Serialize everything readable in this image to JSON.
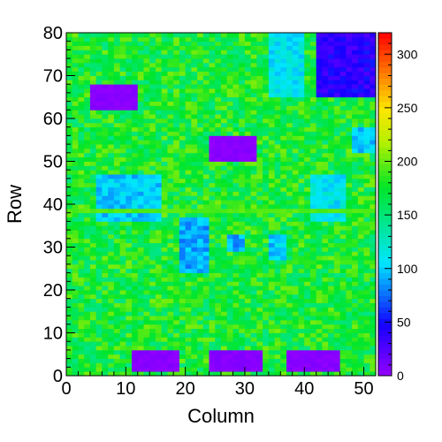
{
  "chart_data": {
    "type": "heatmap",
    "title": "",
    "xlabel": "Column",
    "ylabel": "Row",
    "xlim": [
      0,
      52
    ],
    "ylim": [
      0,
      80
    ],
    "x_ticks": [
      0,
      10,
      20,
      30,
      40,
      50
    ],
    "y_ticks": [
      0,
      10,
      20,
      30,
      40,
      50,
      60,
      70,
      80
    ],
    "colorbar": {
      "range": [
        0,
        320
      ],
      "ticks": [
        0,
        50,
        100,
        150,
        200,
        250,
        300
      ],
      "palette": "rainbow (violet to red)"
    },
    "grid": false,
    "bins": {
      "columns": 52,
      "rows": 80
    },
    "background_value": 175,
    "regions": [
      {
        "name": "top-right block",
        "cols": [
          42,
          52
        ],
        "rows": [
          65,
          80
        ],
        "value": 40
      },
      {
        "name": "upper-left pad",
        "cols": [
          4,
          12
        ],
        "rows": [
          62,
          68
        ],
        "value": 5
      },
      {
        "name": "middle pad",
        "cols": [
          24,
          32
        ],
        "rows": [
          50,
          56
        ],
        "value": 5
      },
      {
        "name": "left block",
        "cols": [
          5,
          16
        ],
        "rows": [
          36,
          47
        ],
        "value": 100
      },
      {
        "name": "right block",
        "cols": [
          41,
          47
        ],
        "rows": [
          36,
          47
        ],
        "value": 110
      },
      {
        "name": "upper cyan block",
        "cols": [
          34,
          40
        ],
        "rows": [
          65,
          80
        ],
        "value": 110
      },
      {
        "name": "right small block",
        "cols": [
          48,
          52
        ],
        "rows": [
          52,
          58
        ],
        "value": 100
      },
      {
        "name": "middle block",
        "cols": [
          19,
          24
        ],
        "rows": [
          24,
          37
        ],
        "value": 90
      },
      {
        "name": "small square",
        "cols": [
          27,
          30
        ],
        "rows": [
          29,
          33
        ],
        "value": 90
      },
      {
        "name": "small square 2",
        "cols": [
          34,
          37
        ],
        "rows": [
          27,
          33
        ],
        "value": 100
      },
      {
        "name": "bottom pad 1",
        "cols": [
          11,
          19
        ],
        "rows": [
          1,
          6
        ],
        "value": 5
      },
      {
        "name": "bottom pad 2",
        "cols": [
          24,
          33
        ],
        "rows": [
          1,
          6
        ],
        "value": 5
      },
      {
        "name": "bottom pad 3",
        "cols": [
          37,
          46
        ],
        "rows": [
          1,
          6
        ],
        "value": 5
      }
    ],
    "stripes": [
      {
        "orientation": "horizontal",
        "row": 38,
        "value": 195
      }
    ]
  }
}
